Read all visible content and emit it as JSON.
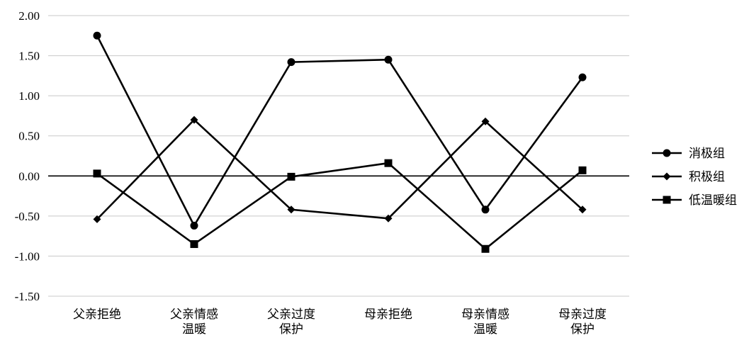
{
  "chart_data": {
    "type": "line",
    "categories": [
      [
        "父亲拒绝"
      ],
      [
        "父亲情感",
        "温暖"
      ],
      [
        "父亲过度",
        "保护"
      ],
      [
        "母亲拒绝"
      ],
      [
        "母亲情感",
        "温暖"
      ],
      [
        "母亲过度",
        "保护"
      ]
    ],
    "series": [
      {
        "name": "消极组",
        "marker": "circle",
        "values": [
          1.75,
          -0.62,
          1.42,
          1.45,
          -0.42,
          1.23
        ]
      },
      {
        "name": "积极组",
        "marker": "diamond",
        "values": [
          -0.54,
          0.7,
          -0.42,
          -0.53,
          0.68,
          -0.42
        ]
      },
      {
        "name": "低温暖组",
        "marker": "square",
        "values": [
          0.03,
          -0.85,
          -0.01,
          0.16,
          -0.91,
          0.07
        ]
      }
    ],
    "y_ticks": [
      "2.00",
      "1.50",
      "1.00",
      "0.50",
      "0.00",
      "-0.50",
      "-1.00",
      "-1.50"
    ],
    "ylim": [
      -1.5,
      2.0
    ],
    "grid": true,
    "legend_position": "right",
    "colors": {
      "line": "#000000",
      "grid": "#c8c8c8",
      "zero_line": "#000000"
    }
  }
}
